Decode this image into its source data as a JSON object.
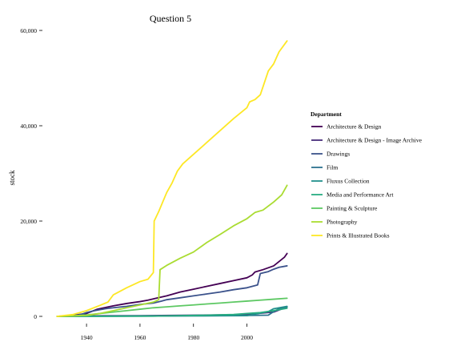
{
  "chart_data": {
    "type": "line",
    "title": "Question 5",
    "xlabel": "",
    "ylabel": "stock",
    "xlim": [
      1925,
      2016
    ],
    "ylim": [
      0,
      60000
    ],
    "x_ticks": [
      1940,
      1960,
      1980,
      2000
    ],
    "y_ticks": [
      0,
      20000,
      40000,
      60000
    ],
    "y_tick_labels": [
      "0",
      "20,000",
      "40,000",
      "60,000"
    ],
    "grid": false,
    "legend": {
      "title": "Department",
      "placement": "right"
    },
    "series": [
      {
        "name": "Architecture & Design",
        "color": "#440154",
        "points": [
          [
            1929,
            0
          ],
          [
            1935,
            200
          ],
          [
            1940,
            600
          ],
          [
            1944,
            1500
          ],
          [
            1950,
            2200
          ],
          [
            1955,
            2700
          ],
          [
            1960,
            3100
          ],
          [
            1963,
            3400
          ],
          [
            1966,
            3800
          ],
          [
            1970,
            4300
          ],
          [
            1975,
            5100
          ],
          [
            1980,
            5700
          ],
          [
            1985,
            6300
          ],
          [
            1990,
            6900
          ],
          [
            1995,
            7500
          ],
          [
            2000,
            8100
          ],
          [
            2002,
            8700
          ],
          [
            2003,
            9300
          ],
          [
            2006,
            9800
          ],
          [
            2010,
            10600
          ],
          [
            2012,
            11500
          ],
          [
            2014,
            12400
          ],
          [
            2015,
            13200
          ]
        ]
      },
      {
        "name": "Architecture & Design - Image Archive",
        "color": "#472D7B",
        "points": [
          [
            1929,
            0
          ],
          [
            1940,
            100
          ],
          [
            1960,
            150
          ],
          [
            1980,
            250
          ],
          [
            1990,
            300
          ],
          [
            2000,
            400
          ],
          [
            2010,
            900
          ],
          [
            2015,
            2000
          ]
        ]
      },
      {
        "name": "Drawings",
        "color": "#3B528B",
        "points": [
          [
            1929,
            0
          ],
          [
            1935,
            100
          ],
          [
            1938,
            400
          ],
          [
            1940,
            800
          ],
          [
            1943,
            1200
          ],
          [
            1947,
            1600
          ],
          [
            1950,
            1800
          ],
          [
            1955,
            2100
          ],
          [
            1960,
            2500
          ],
          [
            1965,
            2800
          ],
          [
            1968,
            3200
          ],
          [
            1970,
            3500
          ],
          [
            1975,
            3900
          ],
          [
            1980,
            4300
          ],
          [
            1985,
            4700
          ],
          [
            1990,
            5100
          ],
          [
            1995,
            5600
          ],
          [
            2000,
            6000
          ],
          [
            2004,
            6600
          ],
          [
            2005,
            9000
          ],
          [
            2008,
            9400
          ],
          [
            2010,
            9900
          ],
          [
            2012,
            10300
          ],
          [
            2015,
            10600
          ]
        ]
      },
      {
        "name": "Film",
        "color": "#2C728E",
        "points": [
          [
            1929,
            0
          ],
          [
            1950,
            50
          ],
          [
            1970,
            100
          ],
          [
            1990,
            150
          ],
          [
            2000,
            200
          ],
          [
            2008,
            250
          ],
          [
            2010,
            1000
          ],
          [
            2012,
            1600
          ],
          [
            2015,
            2000
          ]
        ]
      },
      {
        "name": "Fluxus Collection",
        "color": "#21908C",
        "points": [
          [
            1929,
            0
          ],
          [
            1960,
            50
          ],
          [
            1980,
            100
          ],
          [
            2000,
            150
          ],
          [
            2008,
            1000
          ],
          [
            2010,
            1600
          ],
          [
            2015,
            2100
          ]
        ]
      },
      {
        "name": "Media and Performance Art",
        "color": "#27AD81",
        "points": [
          [
            1929,
            0
          ],
          [
            1965,
            50
          ],
          [
            1975,
            150
          ],
          [
            1985,
            250
          ],
          [
            1995,
            400
          ],
          [
            2000,
            600
          ],
          [
            2005,
            800
          ],
          [
            2010,
            1200
          ],
          [
            2015,
            1700
          ]
        ]
      },
      {
        "name": "Painting & Sculpture",
        "color": "#5DC863",
        "points": [
          [
            1929,
            0
          ],
          [
            1935,
            100
          ],
          [
            1940,
            300
          ],
          [
            1945,
            600
          ],
          [
            1950,
            900
          ],
          [
            1955,
            1200
          ],
          [
            1960,
            1500
          ],
          [
            1965,
            1800
          ],
          [
            1970,
            2000
          ],
          [
            1975,
            2200
          ],
          [
            1980,
            2400
          ],
          [
            1985,
            2600
          ],
          [
            1990,
            2800
          ],
          [
            1995,
            3000
          ],
          [
            2000,
            3200
          ],
          [
            2005,
            3400
          ],
          [
            2010,
            3600
          ],
          [
            2015,
            3800
          ]
        ]
      },
      {
        "name": "Photography",
        "color": "#AADC32",
        "points": [
          [
            1929,
            0
          ],
          [
            1940,
            200
          ],
          [
            1945,
            600
          ],
          [
            1950,
            1200
          ],
          [
            1955,
            1800
          ],
          [
            1960,
            2400
          ],
          [
            1965,
            3000
          ],
          [
            1967,
            3500
          ],
          [
            1967.5,
            9800
          ],
          [
            1970,
            10700
          ],
          [
            1975,
            12200
          ],
          [
            1980,
            13500
          ],
          [
            1985,
            15500
          ],
          [
            1990,
            17200
          ],
          [
            1995,
            19000
          ],
          [
            2000,
            20500
          ],
          [
            2003,
            21800
          ],
          [
            2006,
            22300
          ],
          [
            2010,
            24000
          ],
          [
            2013,
            25500
          ],
          [
            2015,
            27500
          ]
        ]
      },
      {
        "name": "Prints & Illustrated Books",
        "color": "#FDE725",
        "points": [
          [
            1929,
            0
          ],
          [
            1935,
            400
          ],
          [
            1940,
            1200
          ],
          [
            1945,
            2300
          ],
          [
            1948,
            3000
          ],
          [
            1950,
            4500
          ],
          [
            1955,
            6000
          ],
          [
            1960,
            7300
          ],
          [
            1963,
            7800
          ],
          [
            1964,
            8500
          ],
          [
            1965,
            9200
          ],
          [
            1965.3,
            20000
          ],
          [
            1967,
            22000
          ],
          [
            1970,
            26000
          ],
          [
            1972,
            28000
          ],
          [
            1974,
            30500
          ],
          [
            1976,
            32000
          ],
          [
            1980,
            34000
          ],
          [
            1985,
            36500
          ],
          [
            1990,
            39000
          ],
          [
            1995,
            41500
          ],
          [
            2000,
            43800
          ],
          [
            2001,
            45000
          ],
          [
            2003,
            45500
          ],
          [
            2005,
            46500
          ],
          [
            2008,
            51500
          ],
          [
            2010,
            53000
          ],
          [
            2012,
            55500
          ],
          [
            2015,
            57800
          ]
        ]
      }
    ]
  }
}
